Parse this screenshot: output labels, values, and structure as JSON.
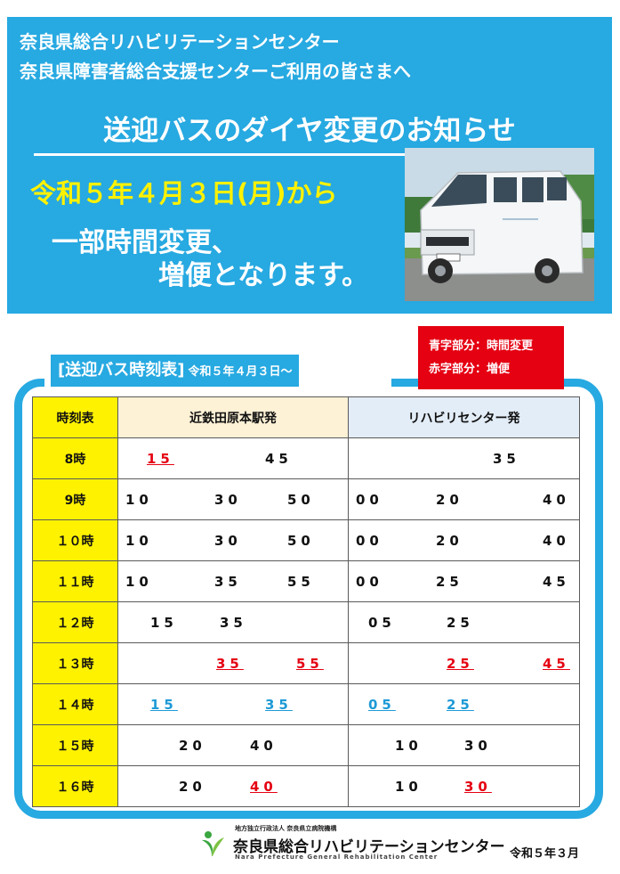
{
  "header": {
    "line1": "奈良県総合リハビリテーションセンター",
    "line2": "奈良県障害者総合支援センターご利用の皆さまへ",
    "title": "送迎バスのダイヤ変更のお知らせ",
    "date": "令和５年４月３日(月)から",
    "change1": "一部時間変更、",
    "change2": "増便となります。"
  },
  "timetable_label": {
    "main": "[送迎バス時刻表]",
    "date": "令和５年４月３日～"
  },
  "legend": {
    "blue": "青字部分：時間変更",
    "red": "赤字部分：増便"
  },
  "table": {
    "headers": {
      "hour": "時刻表",
      "from_station": "近鉄田原本駅発",
      "from_center": "リハビリセンター発"
    },
    "rows": [
      {
        "hour": "8時",
        "station": [
          {
            "t": "15",
            "s": "red"
          },
          {
            "t": "45",
            "s": ""
          }
        ],
        "center": [
          {
            "t": "35",
            "s": ""
          }
        ]
      },
      {
        "hour": "9時",
        "station": [
          {
            "t": "10",
            "s": ""
          },
          {
            "t": "30",
            "s": ""
          },
          {
            "t": "50",
            "s": ""
          }
        ],
        "center": [
          {
            "t": "00",
            "s": ""
          },
          {
            "t": "20",
            "s": ""
          },
          {
            "t": "40",
            "s": ""
          }
        ]
      },
      {
        "hour": "１０時",
        "station": [
          {
            "t": "10",
            "s": ""
          },
          {
            "t": "30",
            "s": ""
          },
          {
            "t": "50",
            "s": ""
          }
        ],
        "center": [
          {
            "t": "00",
            "s": ""
          },
          {
            "t": "20",
            "s": ""
          },
          {
            "t": "40",
            "s": ""
          }
        ]
      },
      {
        "hour": "１１時",
        "station": [
          {
            "t": "10",
            "s": ""
          },
          {
            "t": "35",
            "s": ""
          },
          {
            "t": "55",
            "s": ""
          }
        ],
        "center": [
          {
            "t": "00",
            "s": ""
          },
          {
            "t": "25",
            "s": ""
          },
          {
            "t": "45",
            "s": ""
          }
        ]
      },
      {
        "hour": "１２時",
        "station": [
          {
            "t": "15",
            "s": ""
          },
          {
            "t": "35",
            "s": ""
          }
        ],
        "center": [
          {
            "t": "05",
            "s": ""
          },
          {
            "t": "25",
            "s": ""
          }
        ]
      },
      {
        "hour": "１３時",
        "station": [
          {
            "t": "35",
            "s": "red"
          },
          {
            "t": "55",
            "s": "red"
          }
        ],
        "center": [
          {
            "t": "25",
            "s": "red"
          },
          {
            "t": "45",
            "s": "red"
          }
        ]
      },
      {
        "hour": "１４時",
        "station": [
          {
            "t": "15",
            "s": "blue"
          },
          {
            "t": "35",
            "s": "blue"
          }
        ],
        "center": [
          {
            "t": "05",
            "s": "blue"
          },
          {
            "t": "25",
            "s": "blue"
          }
        ]
      },
      {
        "hour": "１５時",
        "station": [
          {
            "t": "20",
            "s": ""
          },
          {
            "t": "40",
            "s": ""
          }
        ],
        "center": [
          {
            "t": "10",
            "s": ""
          },
          {
            "t": "30",
            "s": ""
          }
        ]
      },
      {
        "hour": "１６時",
        "station": [
          {
            "t": "20",
            "s": ""
          },
          {
            "t": "40",
            "s": "red"
          }
        ],
        "center": [
          {
            "t": "10",
            "s": ""
          },
          {
            "t": "30",
            "s": "red"
          }
        ]
      }
    ]
  },
  "footer": {
    "org_small": "地方独立行政法人 奈良県立病院機構",
    "org_name": "奈良県総合リハビリテーションセンター",
    "org_en": "Nara Prefecture General Rehabilitation Center",
    "issue_date": "令和５年３月"
  },
  "colors": {
    "banner": "#27a9e1",
    "highlight_yellow": "#fff200",
    "increase_red": "#e50012",
    "change_blue": "#1e9ad6"
  }
}
